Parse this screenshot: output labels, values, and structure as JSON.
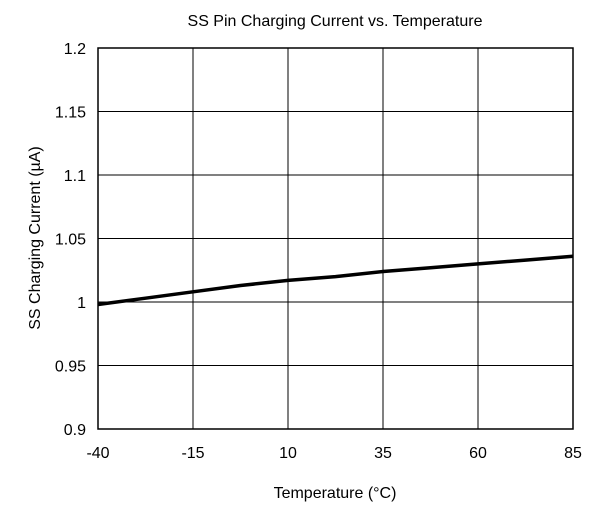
{
  "chart_data": {
    "type": "line",
    "title": "SS Pin Charging Current vs. Temperature",
    "xlabel": "Temperature (°C)",
    "ylabel": "SS Charging Current (µA)",
    "xlim": [
      -40,
      85
    ],
    "ylim": [
      0.9,
      1.2
    ],
    "xticks": [
      "-40",
      "-15",
      "10",
      "35",
      "60",
      "85"
    ],
    "yticks": [
      "0.9",
      "0.95",
      "1",
      "1.05",
      "1.1",
      "1.15",
      "1.2"
    ],
    "grid": true,
    "legend": "none",
    "series": [
      {
        "color": "#000000",
        "x": [
          -40,
          -27.5,
          -15,
          -2.5,
          10,
          22.5,
          35,
          47.5,
          60,
          72.5,
          85
        ],
        "y": [
          0.998,
          1.003,
          1.008,
          1.013,
          1.017,
          1.02,
          1.024,
          1.027,
          1.03,
          1.033,
          1.036
        ]
      }
    ]
  }
}
